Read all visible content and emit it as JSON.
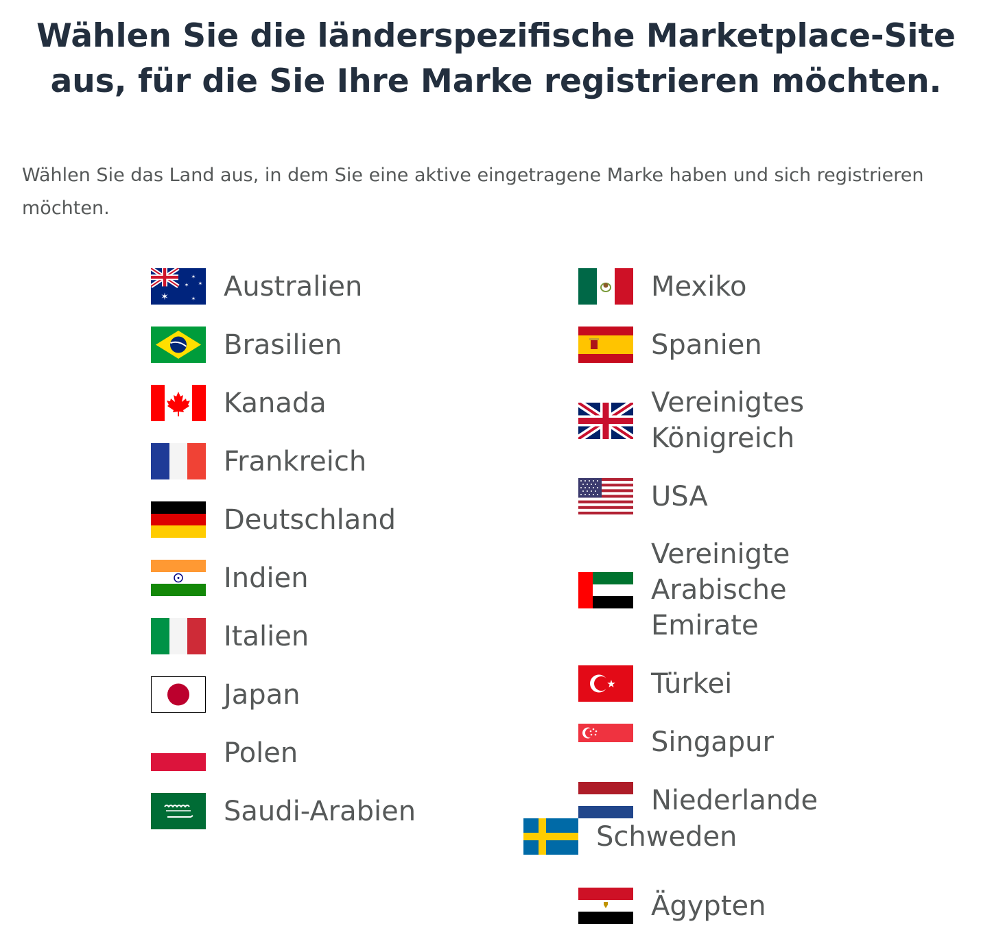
{
  "page": {
    "title_line1": "Wählen Sie die länderspezifische Marketplace-Site",
    "title_line2": "aus, für die Sie Ihre Marke registrieren möchten.",
    "subtitle": "Wählen Sie das Land aus, in dem Sie eine aktive eingetragene Marke haben und sich registrieren möchten."
  },
  "countries": {
    "australia": "Australien",
    "brazil": "Brasilien",
    "canada": "Kanada",
    "france": "Frankreich",
    "germany": "Deutschland",
    "india": "Indien",
    "italy": "Italien",
    "japan": "Japan",
    "poland": "Polen",
    "saudi_arabia": "Saudi-Arabien",
    "mexico": "Mexiko",
    "spain": "Spanien",
    "uk_line1": "Vereinigtes",
    "uk_line2": "Königreich",
    "usa": "USA",
    "uae_line1": "Vereinigte",
    "uae_line2": "Arabische",
    "uae_line3": "Emirate",
    "turkey": "Türkei",
    "singapore": "Singapur",
    "netherlands": "Niederlande",
    "sweden": "Schweden",
    "egypt": "Ägypten"
  },
  "flag_icons": {
    "australia": "flag-australia-icon",
    "brazil": "flag-brazil-icon",
    "canada": "flag-canada-icon",
    "france": "flag-france-icon",
    "germany": "flag-germany-icon",
    "india": "flag-india-icon",
    "italy": "flag-italy-icon",
    "japan": "flag-japan-icon",
    "poland": "flag-poland-icon",
    "saudi_arabia": "flag-saudi-arabia-icon",
    "mexico": "flag-mexico-icon",
    "spain": "flag-spain-icon",
    "uk": "flag-uk-icon",
    "usa": "flag-usa-icon",
    "uae": "flag-uae-icon",
    "turkey": "flag-turkey-icon",
    "singapore": "flag-singapore-icon",
    "netherlands": "flag-netherlands-icon",
    "sweden": "flag-sweden-icon",
    "egypt": "flag-egypt-icon"
  },
  "colors": {
    "title": "#232f3e",
    "text": "#565959"
  }
}
